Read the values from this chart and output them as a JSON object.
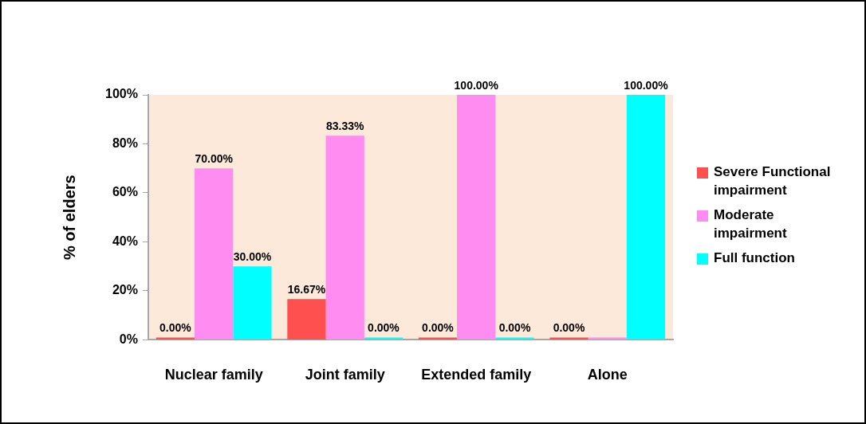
{
  "chart_data": {
    "type": "bar",
    "ylabel": "% of elders",
    "categories": [
      "Nuclear family",
      "Joint family",
      "Extended family",
      "Alone"
    ],
    "series": [
      {
        "name": "Severe Functional impairment",
        "color": "#ff5050",
        "values": [
          0,
          16.67,
          0,
          0
        ],
        "value_labels": [
          "0.00%",
          "16.67%",
          "0.00%",
          "0.00%"
        ]
      },
      {
        "name": "Moderate impairment",
        "color": "#ff8cf0",
        "values": [
          70,
          83.33,
          100,
          0
        ],
        "value_labels": [
          "70.00%",
          "83.33%",
          "100.00%",
          null
        ]
      },
      {
        "name": "Full function",
        "color": "#00ffff",
        "values": [
          30,
          0,
          0,
          100
        ],
        "value_labels": [
          "30.00%",
          "0.00%",
          "0.00%",
          "100.00%"
        ]
      }
    ],
    "ylim": [
      0,
      100
    ],
    "yticks": [
      {
        "value": 0,
        "label": "0%"
      },
      {
        "value": 20,
        "label": "20%"
      },
      {
        "value": 40,
        "label": "40%"
      },
      {
        "value": 60,
        "label": "60%"
      },
      {
        "value": 80,
        "label": "80%"
      },
      {
        "value": 100,
        "label": "100%"
      }
    ],
    "grid": false,
    "legend": "right"
  }
}
